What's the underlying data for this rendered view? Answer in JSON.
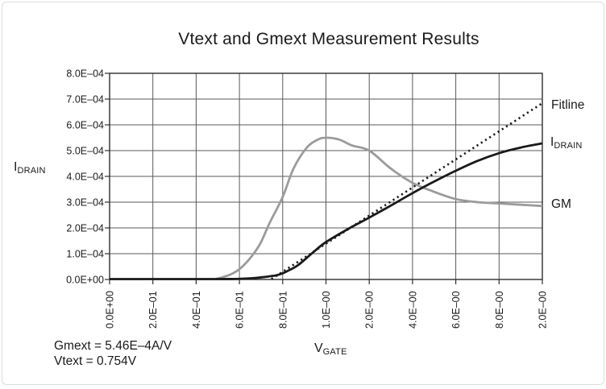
{
  "title": "Vtext and Gmext Measurement Results",
  "annotations": {
    "gmext": "Gmext = 5.46E–4A/V",
    "vtext": "Vtext = 0.754V"
  },
  "axis_labels": {
    "y_main": "I",
    "y_sub": "DRAIN",
    "x_main": "V",
    "x_sub": "GATE"
  },
  "series_labels": {
    "fitline": "Fitline",
    "idrain_main": "I",
    "idrain_sub": "DRAIN",
    "gm": "GM"
  },
  "colors": {
    "curve_black": "#1a1a1a",
    "curve_gray": "#9b9b9b",
    "grid": "#59595b",
    "plot_border": "#2e2e2e",
    "text": "#1a1a1a",
    "card_border": "#dcdcdc"
  },
  "chart_data": {
    "type": "line",
    "title": "Vtext and Gmext Measurement Results",
    "xlabel": "V_GATE",
    "ylabel": "I_DRAIN",
    "grid": true,
    "legend_position": "right-of-plot",
    "x_axis": {
      "tick_labels": [
        "0.0E+00",
        "2.0E–01",
        "4.0E–01",
        "6.0E–01",
        "8.0E–01",
        "1.0E–00",
        "2.0E–00",
        "4.0E–00",
        "6.0E–00",
        "8.0E–00",
        "2.0E–00"
      ],
      "scale_note": "piecewise scale: 0 to 1 V in 0.2 V steps, then 2 V steps; ticks evenly spaced"
    },
    "y_axis": {
      "tick_labels": [
        "8.0E–04",
        "7.0E–04",
        "6.0E–04",
        "5.0E–04",
        "4.0E–04",
        "3.0E–04",
        "2.0E–04",
        "1.0E–04",
        "0.0E+00"
      ],
      "min": 0,
      "max": 0.0008,
      "unit": "A"
    },
    "annotations": [
      "Gmext = 5.46E–4A/V",
      "Vtext = 0.754V"
    ],
    "readings_at_ticks": {
      "tick_labels": [
        "0.0E+00",
        "2.0E–01",
        "4.0E–01",
        "6.0E–01",
        "8.0E–01",
        "1.0E–00",
        "2.0E–00",
        "4.0E–00",
        "6.0E–00",
        "8.0E–00",
        "2.0E–00"
      ],
      "IDRAIN": [
        0,
        0,
        0,
        1e-05,
        2.6e-05,
        0.000145,
        0.00024,
        0.000335,
        0.00042,
        0.00049,
        0.000528
      ],
      "GM": [
        0,
        0,
        0,
        4e-05,
        0.00032,
        0.00055,
        0.0005,
        0.000375,
        0.00031,
        0.000295,
        0.000285
      ],
      "Fitline": [
        null,
        null,
        null,
        null,
        3e-05,
        0.000135,
        0.000245,
        0.000355,
        0.000465,
        0.000575,
        0.000684
      ]
    },
    "series": [
      {
        "name": "GM",
        "color": "#9b9b9b",
        "dash": null,
        "width": 2.8,
        "points_tickunits_amps": [
          [
            2.45,
            0
          ],
          [
            2.8,
            2e-05
          ],
          [
            3.1,
            5.5e-05
          ],
          [
            3.45,
            0.00013
          ],
          [
            3.7,
            0.00022
          ],
          [
            4.0,
            0.00032
          ],
          [
            4.25,
            0.00043
          ],
          [
            4.55,
            0.00051
          ],
          [
            4.8,
            0.000542
          ],
          [
            5.0,
            0.00055
          ],
          [
            5.3,
            0.000543
          ],
          [
            5.6,
            0.00052
          ],
          [
            6.0,
            0.0005
          ],
          [
            6.5,
            0.00043
          ],
          [
            7.0,
            0.000375
          ],
          [
            7.5,
            0.00034
          ],
          [
            8.0,
            0.000312
          ],
          [
            8.5,
            0.0003
          ],
          [
            9.0,
            0.000295
          ],
          [
            9.5,
            0.00029
          ],
          [
            10.0,
            0.000285
          ]
        ]
      },
      {
        "name": "IDRAIN",
        "color": "#1a1a1a",
        "dash": null,
        "width": 2.8,
        "points_tickunits_amps": [
          [
            0.0,
            0
          ],
          [
            2.4,
            0
          ],
          [
            2.9,
            2e-06
          ],
          [
            3.3,
            5e-06
          ],
          [
            3.6,
            1e-05
          ],
          [
            3.85,
            1.6e-05
          ],
          [
            4.0,
            2.4e-05
          ],
          [
            4.1,
            3.2e-05
          ],
          [
            4.35,
            5.5e-05
          ],
          [
            4.7,
            0.000105
          ],
          [
            5.0,
            0.000145
          ],
          [
            5.5,
            0.000195
          ],
          [
            6.0,
            0.00024
          ],
          [
            6.5,
            0.000287
          ],
          [
            7.0,
            0.000335
          ],
          [
            7.5,
            0.00038
          ],
          [
            8.0,
            0.000422
          ],
          [
            8.5,
            0.00046
          ],
          [
            9.0,
            0.00049
          ],
          [
            9.5,
            0.000512
          ],
          [
            10.0,
            0.000528
          ]
        ]
      },
      {
        "name": "Fitline",
        "color": "#1a1a1a",
        "dash": "2.2 4",
        "width": 2.6,
        "points_tickunits_amps": [
          [
            3.74,
            0
          ],
          [
            10.0,
            0.000684
          ]
        ]
      }
    ]
  }
}
